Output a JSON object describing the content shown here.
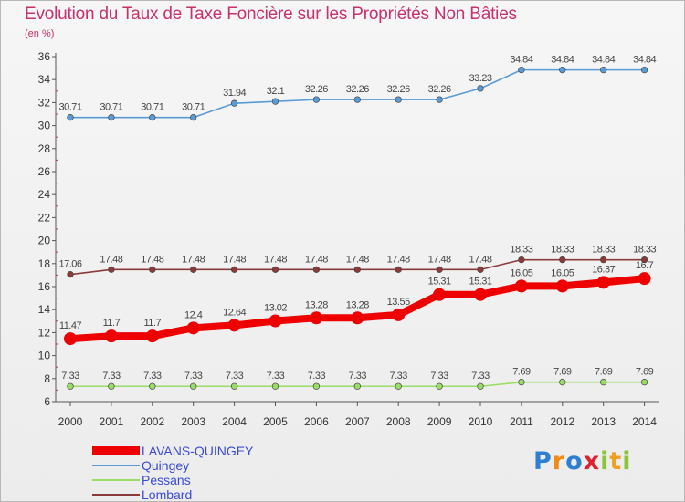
{
  "header": {
    "title": "Evolution du Taux de Taxe Foncière sur les Propriétés Non Bâties",
    "unit": "(en %)"
  },
  "logo": {
    "letters": [
      "P",
      "r",
      "o",
      "x",
      "i",
      "t",
      "i"
    ],
    "colors": [
      "#2f7fd0",
      "#f08a18",
      "#2f7fd0",
      "#e02030",
      "#8cc43c",
      "#f0a020",
      "#8cc43c"
    ]
  },
  "chart_data": {
    "type": "line",
    "title": "Evolution du Taux de Taxe Foncière sur les Propriétés Non Bâties",
    "xlabel": "",
    "ylabel": "(en %)",
    "categories": [
      "2000",
      "2001",
      "2002",
      "2003",
      "2004",
      "2005",
      "2006",
      "2007",
      "2008",
      "2009",
      "2010",
      "2011",
      "2012",
      "2013",
      "2014"
    ],
    "ylim": [
      6,
      36
    ],
    "yticks": [
      6,
      8,
      10,
      12,
      14,
      16,
      18,
      20,
      22,
      24,
      26,
      28,
      30,
      32,
      34,
      36
    ],
    "grid": false,
    "legend_position": "bottom-left",
    "series": [
      {
        "name": "LAVANS-QUINGEY",
        "color": "#ee0000",
        "values": [
          11.47,
          11.7,
          11.7,
          12.4,
          12.64,
          13.02,
          13.28,
          13.28,
          13.55,
          15.31,
          15.31,
          16.05,
          16.05,
          16.37,
          16.7
        ],
        "labels": [
          "11.47",
          "11.7",
          "11.7",
          "12.4",
          "12.64",
          "13.02",
          "13.28",
          "13.28",
          "13.55",
          "15.31",
          "15.31",
          "16.05",
          "16.05",
          "16.37",
          "16.7"
        ]
      },
      {
        "name": "Quingey",
        "color": "#5a9bd5",
        "values": [
          30.71,
          30.71,
          30.71,
          30.71,
          31.94,
          32.1,
          32.26,
          32.26,
          32.26,
          32.26,
          33.23,
          34.84,
          34.84,
          34.84,
          34.84
        ],
        "labels": [
          "30.71",
          "30.71",
          "30.71",
          "30.71",
          "31.94",
          "32.1",
          "32.26",
          "32.26",
          "32.26",
          "32.26",
          "33.23",
          "34.84",
          "34.84",
          "34.84",
          "34.84"
        ]
      },
      {
        "name": "Pessans",
        "color": "#99dd66",
        "values": [
          7.33,
          7.33,
          7.33,
          7.33,
          7.33,
          7.33,
          7.33,
          7.33,
          7.33,
          7.33,
          7.33,
          7.69,
          7.69,
          7.69,
          7.69
        ],
        "labels": [
          "7.33",
          "7.33",
          "7.33",
          "7.33",
          "7.33",
          "7.33",
          "7.33",
          "7.33",
          "7.33",
          "7.33",
          "7.33",
          "7.69",
          "7.69",
          "7.69",
          "7.69"
        ]
      },
      {
        "name": "Lombard",
        "color": "#8b3a3a",
        "values": [
          17.06,
          17.48,
          17.48,
          17.48,
          17.48,
          17.48,
          17.48,
          17.48,
          17.48,
          17.48,
          17.48,
          18.33,
          18.33,
          18.33,
          18.33
        ],
        "labels": [
          "17.06",
          "17.48",
          "17.48",
          "17.48",
          "17.48",
          "17.48",
          "17.48",
          "17.48",
          "17.48",
          "17.48",
          "17.48",
          "18.33",
          "18.33",
          "18.33",
          "18.33"
        ]
      }
    ]
  }
}
